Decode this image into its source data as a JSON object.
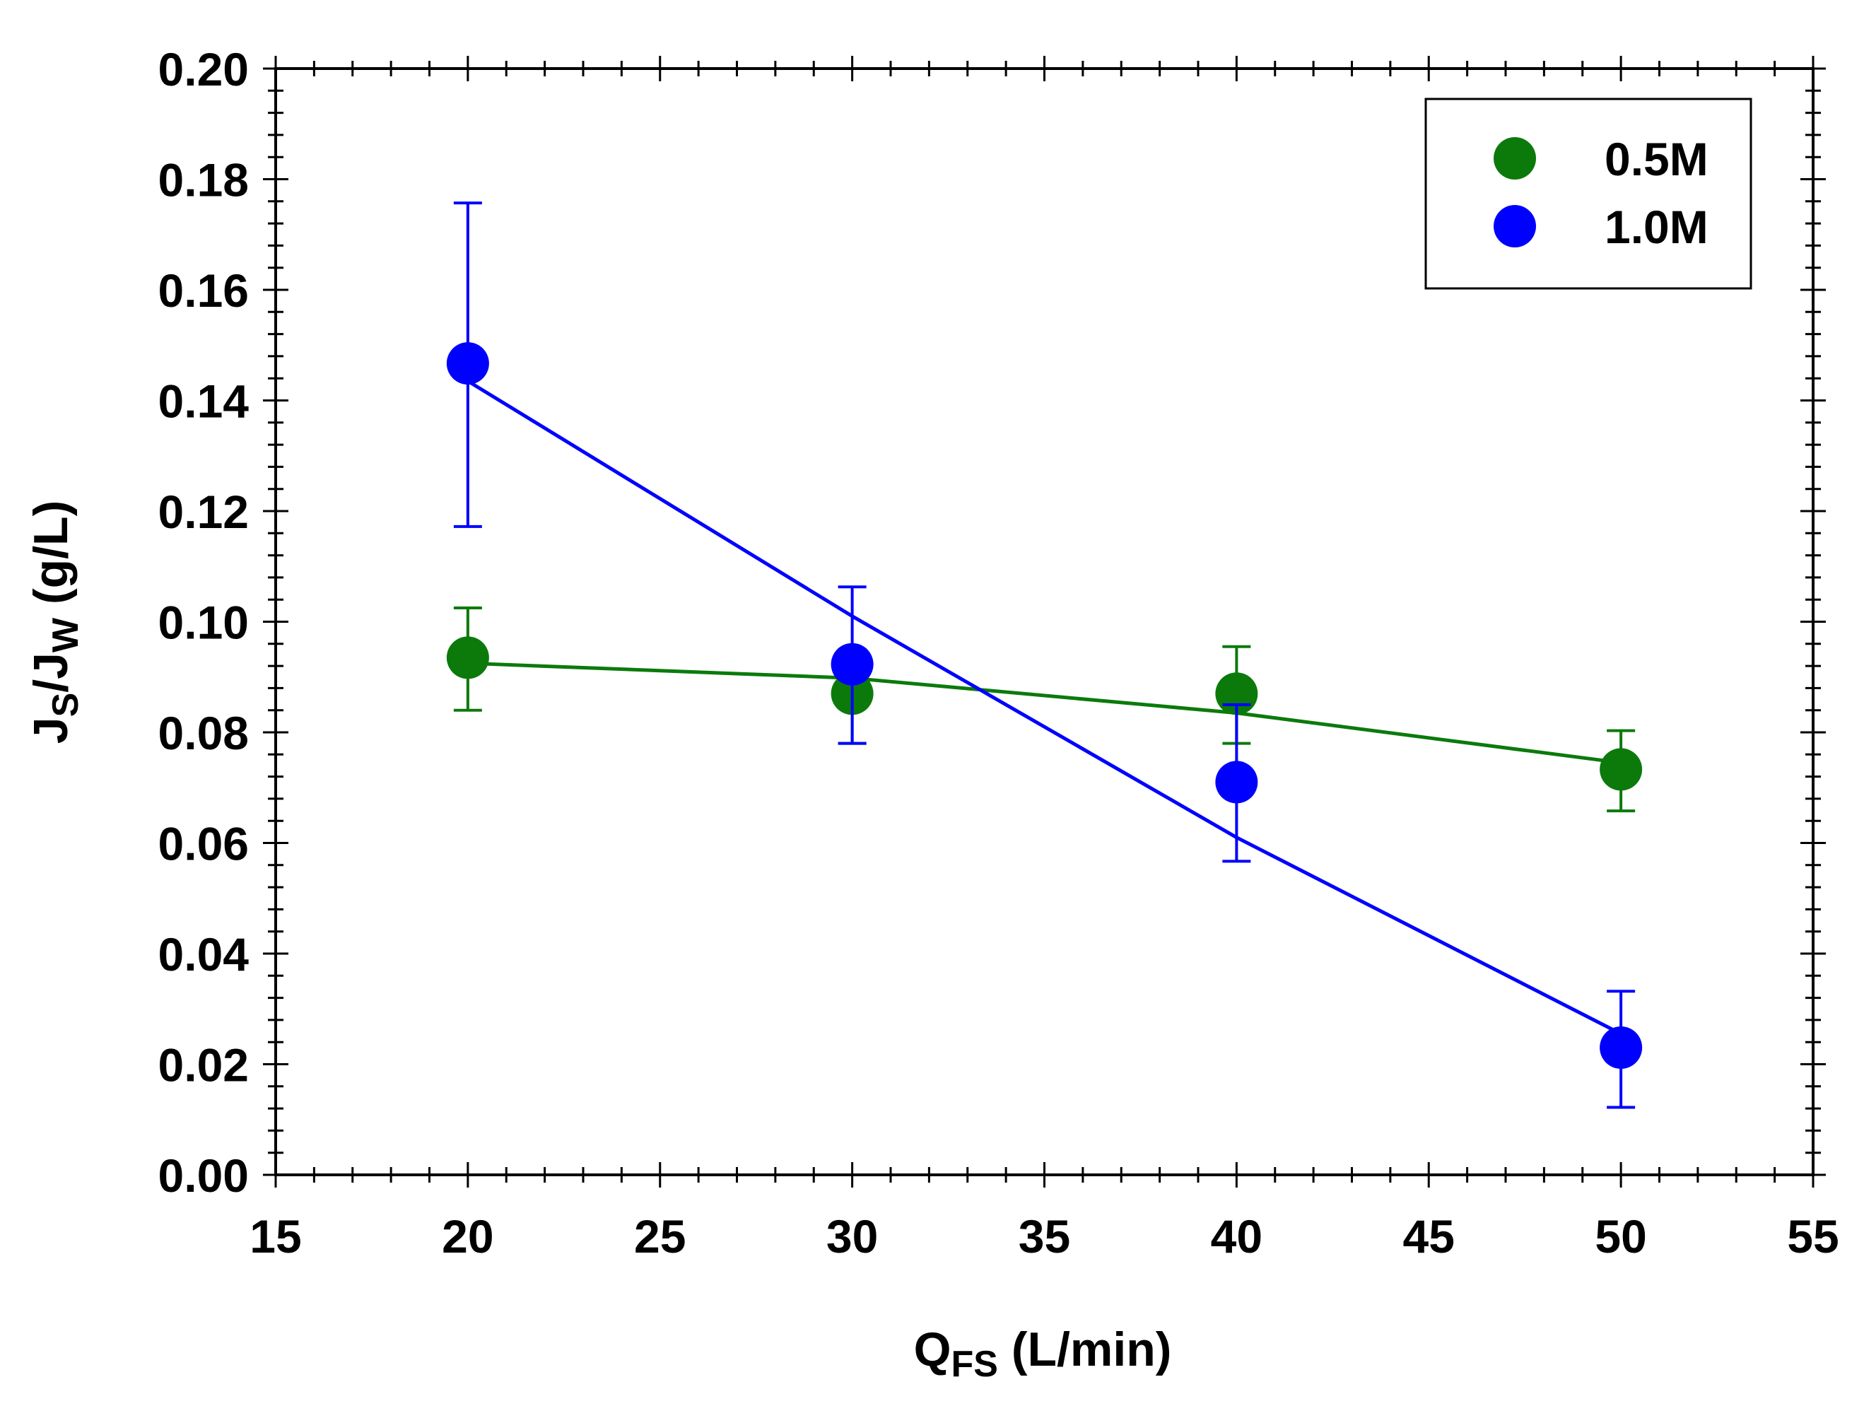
{
  "chart_data": {
    "type": "scatter",
    "title": "",
    "xlabel": {
      "main": "Q",
      "sub": "FS",
      "rest": " (L/min)"
    },
    "ylabel": {
      "j1": "J",
      "s1": "S",
      "slash": "/J",
      "s2": "W",
      "rest": " (g/L)"
    },
    "xlim": [
      15,
      55
    ],
    "ylim": [
      0,
      0.2
    ],
    "x_ticks": [
      "15",
      "20",
      "25",
      "30",
      "35",
      "40",
      "45",
      "50",
      "55"
    ],
    "y_ticks": [
      "0.00",
      "0.02",
      "0.04",
      "0.06",
      "0.08",
      "0.10",
      "0.12",
      "0.14",
      "0.16",
      "0.18",
      "0.20"
    ],
    "grid": false,
    "legend_position": "top-right",
    "series": [
      {
        "name": "0.5M",
        "color": "#0b7a0b",
        "points": [
          {
            "x": 20,
            "y": 0.0935,
            "err_low": 0.084,
            "err_high": 0.1025
          },
          {
            "x": 30,
            "y": 0.087,
            "err_low": 0.078,
            "err_high": 0.095
          },
          {
            "x": 40,
            "y": 0.087,
            "err_low": 0.078,
            "err_high": 0.0955
          },
          {
            "x": 50,
            "y": 0.0733,
            "err_low": 0.0658,
            "err_high": 0.0803
          }
        ],
        "fit": [
          [
            20,
            0.0925
          ],
          [
            30,
            0.0898
          ],
          [
            40,
            0.0835
          ],
          [
            50,
            0.0745
          ]
        ]
      },
      {
        "name": "1.0M",
        "color": "#0000ff",
        "points": [
          {
            "x": 20,
            "y": 0.1467,
            "err_low": 0.1172,
            "err_high": 0.1757
          },
          {
            "x": 30,
            "y": 0.0923,
            "err_low": 0.078,
            "err_high": 0.1063
          },
          {
            "x": 40,
            "y": 0.071,
            "err_low": 0.0567,
            "err_high": 0.085
          },
          {
            "x": 50,
            "y": 0.023,
            "err_low": 0.0122,
            "err_high": 0.0332
          }
        ],
        "fit": [
          [
            20,
            0.1435
          ],
          [
            30,
            0.101
          ],
          [
            40,
            0.061
          ],
          [
            50,
            0.0255
          ]
        ]
      }
    ]
  }
}
